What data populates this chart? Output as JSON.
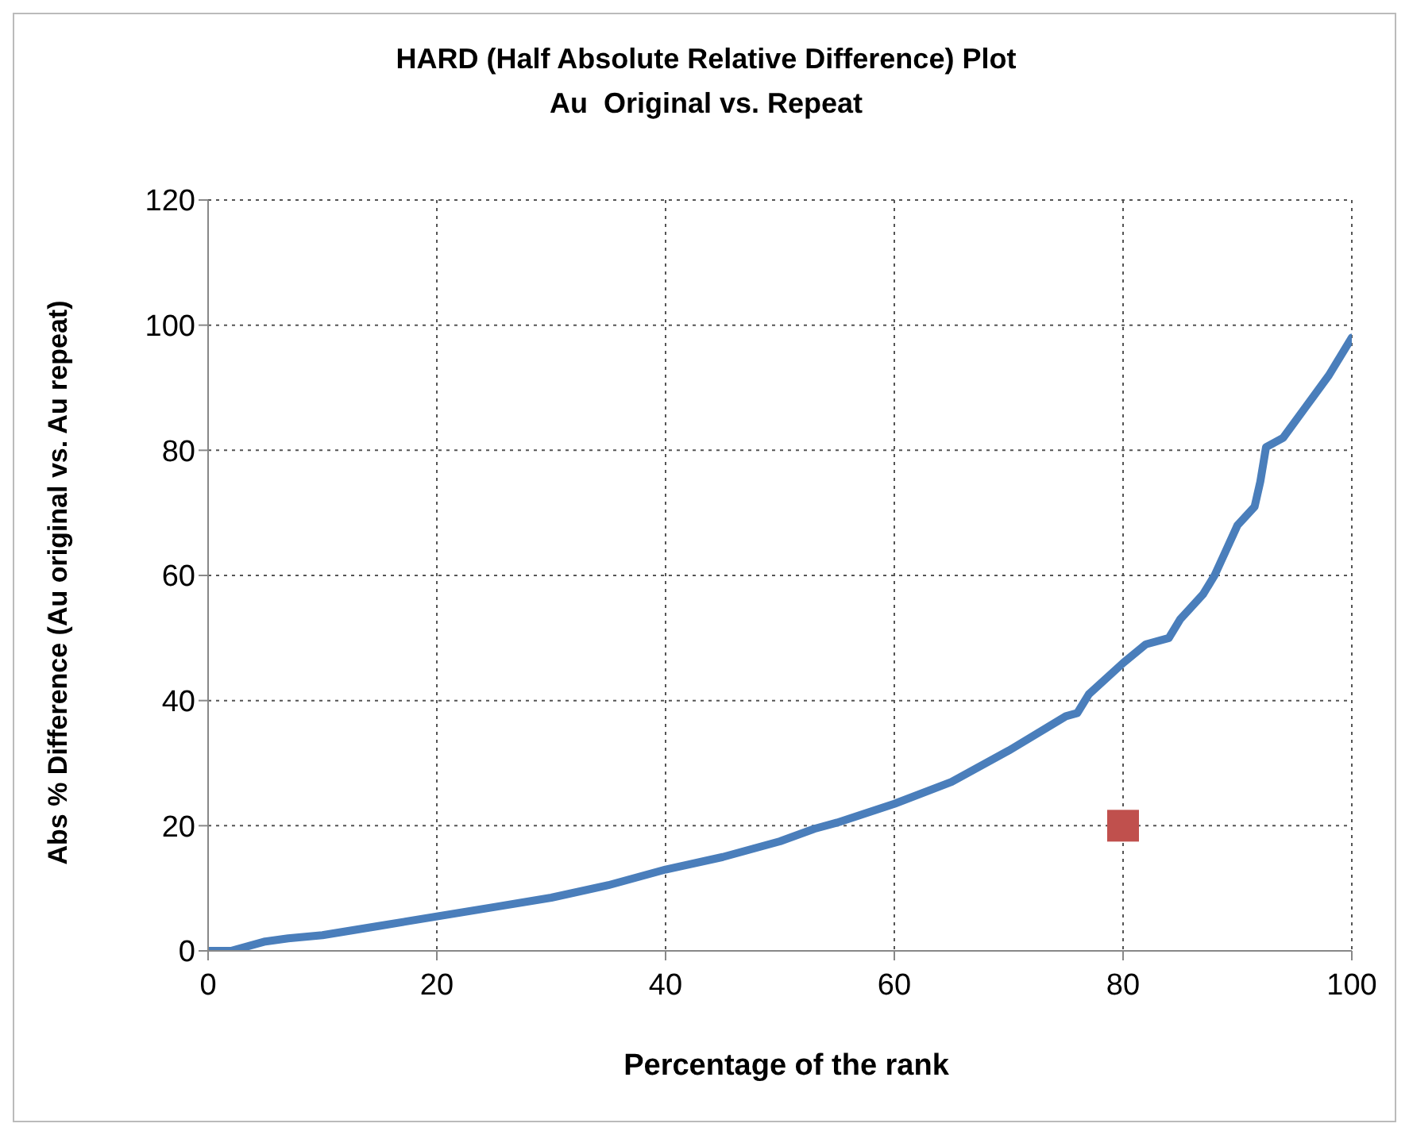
{
  "chart_data": {
    "type": "line",
    "title": "HARD (Half Absolute Relative Difference) Plot",
    "subtitle": "Au  Original vs. Repeat",
    "xlabel": "Percentage of the rank",
    "ylabel": "Abs % Difference (Au original vs. Au repeat)",
    "xlim": [
      0,
      100
    ],
    "xticks": [
      0,
      20,
      40,
      60,
      80,
      100
    ],
    "ylim": [
      0,
      120
    ],
    "yticks": [
      0,
      20,
      40,
      60,
      80,
      100,
      120
    ],
    "grid": true,
    "series": [
      {
        "color": "#4a7ebb",
        "marker": "none",
        "line_style": "solid",
        "x": [
          0,
          2,
          5,
          7,
          10,
          15,
          20,
          25,
          30,
          35,
          40,
          45,
          50,
          53,
          55,
          60,
          65,
          70,
          75,
          76,
          77,
          80,
          82,
          84,
          85,
          87,
          88,
          89,
          90,
          91.5,
          92,
          92.5,
          94,
          96,
          98,
          100
        ],
        "values": [
          0,
          0,
          1.5,
          2,
          2.5,
          4,
          5.5,
          7,
          8.5,
          10.5,
          13,
          15,
          17.5,
          19.5,
          20.5,
          23.5,
          27,
          32,
          37.5,
          38,
          41,
          46,
          49,
          50,
          53,
          57,
          60,
          64,
          68,
          71,
          75,
          80.5,
          82,
          87,
          92,
          98
        ]
      },
      {
        "type": "scatter",
        "color": "#c0504d",
        "marker": "square",
        "x": [
          80
        ],
        "values": [
          20
        ]
      }
    ]
  }
}
